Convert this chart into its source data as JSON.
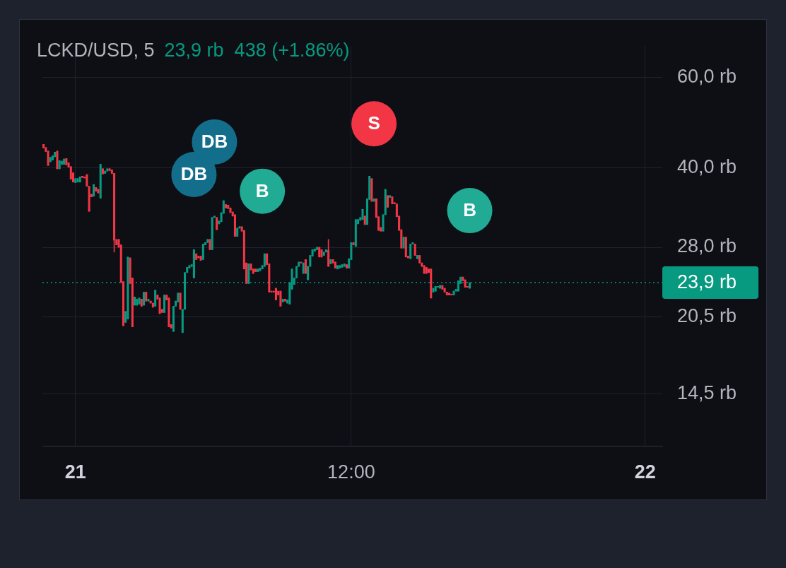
{
  "chart_data": {
    "type": "candlestick",
    "title": "LCKD/USD, 5",
    "subtitle": "23,9 rb  438 (+1.86%)",
    "categories": [
      null,
      null,
      null,
      null,
      null,
      null,
      null,
      null,
      null,
      null,
      null,
      null,
      null,
      null,
      "21",
      null,
      null,
      null,
      null,
      null,
      null,
      null,
      null,
      null,
      null,
      null,
      null,
      null,
      null,
      null,
      null,
      null,
      null,
      null,
      null,
      null,
      null,
      null,
      null,
      null,
      null,
      null,
      null,
      null,
      null,
      null,
      null,
      null,
      null,
      null,
      null,
      null,
      null,
      null,
      null,
      null,
      null,
      null,
      null,
      null,
      null,
      null,
      null,
      null,
      null,
      null,
      null,
      null,
      null,
      null,
      null,
      null,
      null,
      null,
      null,
      null,
      null,
      null,
      null,
      null,
      null,
      null,
      null,
      null,
      null,
      null,
      null,
      null,
      null,
      null,
      null,
      null,
      null,
      null,
      null,
      null,
      null,
      null,
      null,
      null,
      null,
      null,
      null,
      null,
      null,
      null,
      null,
      null,
      null,
      null,
      null,
      null,
      null,
      null,
      null,
      null,
      null,
      null,
      null,
      null,
      null,
      null,
      null,
      null,
      null,
      null,
      null,
      null,
      null,
      null,
      null,
      null,
      null,
      null,
      null,
      "12:00",
      null,
      null,
      null,
      null,
      null,
      null,
      null,
      null,
      null,
      null,
      null,
      null,
      null,
      null,
      null,
      null,
      null,
      null,
      null,
      null,
      null,
      null,
      null,
      null,
      null,
      null,
      null,
      null,
      null,
      null,
      null,
      null,
      null,
      null,
      null,
      null,
      null,
      null,
      null,
      null,
      null,
      null,
      null,
      null,
      null,
      null,
      null,
      null,
      null,
      null,
      null,
      null,
      null,
      null,
      null,
      null,
      null,
      null,
      null,
      null,
      null,
      null,
      null,
      null,
      null,
      null,
      null,
      null,
      null,
      null,
      null,
      null,
      null,
      null,
      null,
      null,
      null,
      null,
      null,
      null,
      null,
      null,
      null,
      null,
      null,
      null,
      null,
      null,
      null,
      null,
      null,
      null,
      null,
      null,
      null,
      null,
      null,
      null,
      null,
      null,
      null,
      null,
      null,
      null,
      null,
      null,
      null,
      null,
      null,
      null,
      null,
      null,
      null,
      null,
      null,
      null,
      null,
      null,
      null,
      null,
      null,
      null,
      null,
      null,
      null,
      null,
      null,
      null,
      "22",
      null,
      null,
      null,
      null,
      null,
      null,
      null
    ],
    "ylim": [
      11.5,
      69
    ],
    "yticks": [
      {
        "value": 60,
        "label": "60,0 rb"
      },
      {
        "value": 40,
        "label": "40,0 rb"
      },
      {
        "value": 28,
        "label": "28,0 rb"
      },
      {
        "value": 20.5,
        "label": "20,5 rb"
      },
      {
        "value": 14.5,
        "label": "14,5 rb"
      }
    ],
    "log": "y",
    "grid": true,
    "marker": "circle",
    "ref_lines": [
      {
        "axis": "y",
        "value": 23.9,
        "label": "23,9 rb",
        "color": "#089981",
        "line_style": "dotted"
      }
    ],
    "series": [
      {
        "ohlc": [
          [
            44.4,
            44.4,
            43.7,
            43.7
          ],
          [
            43.8,
            43.8,
            43.0,
            43.0
          ],
          [
            43.1,
            43.1,
            40.4,
            40.4
          ],
          [
            41.1,
            41.9,
            41.1,
            41.9
          ],
          [
            41.4,
            42.2,
            41.4,
            42.2
          ],
          [
            42.0,
            42.9,
            42.0,
            42.9
          ],
          [
            43.1,
            43.1,
            39.8,
            39.8
          ],
          [
            39.8,
            41.3,
            39.8,
            41.3
          ],
          [
            40.6,
            41.2,
            40.6,
            41.2
          ],
          [
            40.6,
            41.6,
            40.6,
            41.6
          ],
          [
            41.7,
            41.7,
            40.5,
            40.5
          ],
          [
            40.9,
            40.9,
            40.1,
            40.1
          ],
          [
            40.2,
            40.2,
            38.0,
            38.0
          ],
          [
            39.1,
            39.1,
            37.5,
            37.5
          ],
          [
            37.4,
            38.1,
            37.4,
            38.1
          ],
          [
            37.5,
            38.1,
            37.5,
            38.1
          ],
          [
            37.5,
            38.4,
            37.5,
            38.4
          ],
          [
            38.5,
            38.5,
            38.3,
            38.3
          ],
          [
            38.4,
            38.4,
            38.2,
            38.2
          ],
          [
            38.8,
            38.8,
            36.8,
            36.8
          ],
          [
            36.8,
            36.8,
            32.9,
            32.9
          ],
          [
            35.5,
            35.5,
            35.1,
            35.1
          ],
          [
            35.2,
            37.1,
            35.2,
            37.1
          ],
          [
            36.6,
            36.6,
            36.0,
            36.0
          ],
          [
            36.3,
            36.3,
            35.7,
            35.7
          ],
          [
            34.9,
            40.6,
            34.9,
            40.6
          ],
          [
            39.8,
            39.8,
            38.9,
            38.9
          ],
          [
            39.0,
            39.4,
            39.0,
            39.4
          ],
          [
            39.4,
            39.8,
            39.4,
            39.8
          ],
          [
            39.8,
            39.8,
            39.5,
            39.5
          ],
          [
            39.6,
            39.6,
            39.0,
            39.0
          ],
          [
            39.0,
            39.0,
            27.4,
            28.9
          ],
          [
            29.0,
            29.0,
            28.3,
            28.3
          ],
          [
            29.0,
            29.0,
            28.0,
            28.0
          ],
          [
            28.3,
            28.3,
            23.9,
            23.9
          ],
          [
            24.0,
            24.0,
            19.7,
            19.7
          ],
          [
            20.0,
            21.0,
            20.0,
            21.0
          ],
          [
            20.3,
            26.8,
            20.3,
            26.8
          ],
          [
            26.7,
            26.7,
            23.8,
            23.8
          ],
          [
            24.4,
            24.4,
            19.6,
            19.6
          ],
          [
            21.6,
            22.4,
            21.6,
            22.4
          ],
          [
            21.6,
            22.2,
            21.6,
            22.2
          ],
          [
            21.7,
            22.3,
            21.7,
            22.3
          ],
          [
            22.2,
            22.2,
            21.5,
            21.5
          ],
          [
            21.6,
            22.9,
            21.6,
            22.9
          ],
          [
            22.9,
            22.9,
            22.0,
            22.0
          ],
          [
            22.0,
            22.2,
            22.0,
            22.2
          ],
          [
            22.0,
            22.0,
            21.8,
            21.8
          ],
          [
            21.8,
            21.8,
            21.4,
            21.4
          ],
          [
            21.5,
            23.1,
            21.5,
            23.1
          ],
          [
            22.6,
            22.6,
            22.2,
            22.2
          ],
          [
            22.3,
            22.3,
            20.8,
            20.8
          ],
          [
            21.2,
            21.2,
            20.9,
            20.9
          ],
          [
            20.9,
            22.6,
            20.9,
            22.6
          ],
          [
            22.6,
            22.6,
            22.1,
            22.1
          ],
          [
            22.3,
            22.3,
            19.6,
            19.6
          ],
          [
            19.8,
            19.8,
            19.5,
            19.5
          ],
          [
            19.2,
            21.5,
            19.2,
            21.5
          ],
          [
            21.5,
            22.0,
            21.5,
            22.0
          ],
          [
            21.9,
            22.8,
            21.9,
            22.8
          ],
          [
            22.8,
            22.8,
            21.2,
            21.2
          ],
          [
            19.1,
            21.2,
            19.1,
            21.2
          ],
          [
            21.2,
            25.0,
            21.2,
            25.0
          ],
          [
            25.0,
            25.6,
            25.0,
            25.6
          ],
          [
            25.5,
            25.8,
            25.5,
            25.8
          ],
          [
            25.7,
            25.9,
            25.7,
            25.9
          ],
          [
            24.4,
            27.7,
            24.4,
            27.7
          ],
          [
            27.2,
            27.2,
            26.5,
            26.5
          ],
          [
            26.9,
            26.9,
            26.7,
            26.7
          ],
          [
            26.9,
            26.9,
            26.4,
            26.4
          ],
          [
            26.5,
            28.4,
            26.5,
            28.4
          ],
          [
            28.3,
            28.6,
            28.3,
            28.6
          ],
          [
            28.6,
            29.0,
            28.6,
            29.0
          ],
          [
            29.0,
            29.0,
            27.7,
            27.7
          ],
          [
            27.7,
            32.0,
            27.7,
            32.0
          ],
          [
            32.0,
            32.2,
            32.0,
            32.2
          ],
          [
            32.0,
            32.0,
            30.3,
            30.3
          ],
          [
            31.1,
            31.5,
            31.1,
            31.5
          ],
          [
            31.4,
            32.7,
            31.4,
            32.7
          ],
          [
            32.6,
            34.5,
            32.6,
            34.5
          ],
          [
            33.9,
            33.9,
            33.4,
            33.4
          ],
          [
            33.8,
            33.8,
            33.3,
            33.3
          ],
          [
            33.4,
            33.4,
            32.7,
            32.7
          ],
          [
            32.8,
            32.8,
            32.2,
            32.2
          ],
          [
            32.4,
            32.4,
            29.4,
            29.4
          ],
          [
            29.4,
            30.5,
            29.4,
            30.5
          ],
          [
            30.5,
            30.7,
            30.5,
            30.7
          ],
          [
            30.7,
            30.7,
            30.1,
            30.1
          ],
          [
            30.2,
            30.2,
            25.4,
            25.4
          ],
          [
            26.1,
            26.1,
            23.8,
            23.8
          ],
          [
            23.8,
            26.0,
            23.8,
            26.0
          ],
          [
            26.0,
            26.0,
            25.3,
            25.3
          ],
          [
            25.4,
            25.4,
            24.9,
            24.9
          ],
          [
            25.4,
            25.4,
            25.1,
            25.1
          ],
          [
            25.1,
            25.4,
            25.1,
            25.4
          ],
          [
            25.2,
            25.5,
            25.2,
            25.5
          ],
          [
            25.4,
            25.8,
            25.4,
            25.8
          ],
          [
            25.7,
            27.2,
            25.7,
            27.2
          ],
          [
            27.2,
            27.2,
            25.9,
            25.9
          ],
          [
            26.0,
            26.0,
            22.9,
            22.9
          ],
          [
            23.0,
            23.0,
            22.9,
            22.9
          ],
          [
            23.0,
            23.0,
            22.9,
            22.9
          ],
          [
            23.3,
            23.3,
            22.1,
            22.1
          ],
          [
            23.0,
            23.0,
            22.6,
            22.6
          ],
          [
            23.0,
            23.0,
            21.5,
            21.5
          ],
          [
            21.9,
            22.2,
            21.9,
            22.2
          ],
          [
            22.2,
            22.2,
            22.0,
            22.0
          ],
          [
            21.8,
            22.1,
            21.8,
            22.1
          ],
          [
            21.7,
            23.9,
            21.7,
            23.9
          ],
          [
            23.2,
            25.4,
            23.2,
            25.4
          ],
          [
            23.7,
            24.4,
            23.7,
            24.4
          ],
          [
            24.4,
            25.7,
            24.4,
            25.7
          ],
          [
            25.7,
            26.2,
            25.7,
            26.2
          ],
          [
            26.2,
            26.2,
            26.1,
            26.1
          ],
          [
            24.9,
            26.1,
            24.9,
            26.1
          ],
          [
            26.5,
            26.5,
            24.9,
            24.9
          ],
          [
            24.2,
            25.7,
            24.2,
            25.7
          ],
          [
            25.7,
            27.0,
            25.7,
            27.0
          ],
          [
            26.9,
            27.7,
            26.9,
            27.7
          ],
          [
            27.5,
            27.8,
            27.5,
            27.8
          ],
          [
            27.7,
            28.0,
            27.7,
            28.0
          ],
          [
            28.0,
            28.0,
            26.8,
            26.8
          ],
          [
            27.7,
            27.7,
            26.8,
            26.8
          ],
          [
            27.0,
            27.4,
            27.0,
            27.4
          ],
          [
            27.4,
            27.7,
            27.4,
            27.7
          ],
          [
            27.6,
            29.0,
            25.7,
            25.7
          ],
          [
            26.0,
            26.5,
            26.0,
            26.5
          ],
          [
            26.5,
            26.5,
            26.1,
            26.1
          ],
          [
            26.2,
            26.2,
            25.5,
            25.5
          ],
          [
            25.4,
            25.8,
            25.4,
            25.8
          ],
          [
            25.5,
            25.8,
            25.5,
            25.8
          ],
          [
            25.6,
            25.9,
            25.6,
            25.9
          ],
          [
            25.7,
            26.0,
            25.7,
            26.0
          ],
          [
            25.9,
            25.9,
            25.5,
            25.5
          ],
          [
            25.5,
            26.6,
            25.5,
            26.6
          ],
          [
            26.5,
            28.6,
            26.5,
            28.6
          ],
          [
            28.6,
            28.6,
            28.3,
            28.3
          ],
          [
            28.1,
            31.7,
            28.1,
            31.7
          ],
          [
            31.1,
            31.7,
            31.1,
            31.7
          ],
          [
            31.6,
            32.0,
            31.6,
            32.0
          ],
          [
            31.7,
            33.2,
            31.7,
            33.2
          ],
          [
            32.2,
            32.2,
            31.0,
            31.0
          ],
          [
            31.0,
            34.8,
            31.0,
            34.8
          ],
          [
            34.7,
            38.5,
            34.7,
            38.5
          ],
          [
            38.1,
            38.1,
            34.4,
            34.4
          ],
          [
            34.4,
            34.8,
            34.4,
            34.8
          ],
          [
            34.8,
            34.8,
            32.0,
            32.0
          ],
          [
            32.1,
            32.1,
            30.2,
            30.2
          ],
          [
            30.6,
            30.6,
            30.1,
            30.1
          ],
          [
            30.1,
            32.4,
            30.1,
            32.4
          ],
          [
            32.4,
            36.3,
            32.4,
            36.3
          ],
          [
            35.3,
            35.3,
            33.5,
            33.5
          ],
          [
            35.0,
            35.3,
            35.0,
            35.3
          ],
          [
            35.1,
            35.1,
            34.0,
            34.0
          ],
          [
            34.2,
            34.2,
            34.0,
            34.0
          ],
          [
            34.0,
            34.0,
            32.1,
            32.1
          ],
          [
            32.2,
            32.2,
            30.2,
            30.2
          ],
          [
            30.3,
            30.3,
            27.9,
            27.9
          ],
          [
            27.9,
            29.3,
            27.9,
            29.3
          ],
          [
            29.3,
            29.3,
            26.8,
            26.8
          ],
          [
            26.9,
            26.9,
            26.7,
            26.7
          ],
          [
            26.6,
            28.4,
            26.6,
            28.4
          ],
          [
            28.4,
            28.6,
            28.4,
            28.6
          ],
          [
            28.4,
            28.4,
            27.0,
            27.0
          ],
          [
            26.6,
            27.0,
            26.6,
            27.0
          ],
          [
            27.0,
            27.0,
            26.1,
            26.1
          ],
          [
            26.1,
            26.1,
            25.7,
            25.7
          ],
          [
            25.8,
            25.8,
            24.9,
            24.9
          ],
          [
            25.6,
            25.6,
            24.9,
            24.9
          ],
          [
            25.4,
            25.4,
            25.0,
            25.0
          ],
          [
            25.4,
            25.4,
            22.3,
            22.3
          ],
          [
            22.9,
            23.3,
            22.9,
            23.3
          ],
          [
            23.0,
            23.5,
            23.0,
            23.5
          ],
          [
            23.4,
            23.5,
            23.4,
            23.5
          ],
          [
            23.3,
            23.6,
            23.3,
            23.6
          ],
          [
            23.6,
            23.6,
            23.2,
            23.2
          ],
          [
            23.3,
            23.3,
            22.9,
            22.9
          ],
          [
            22.9,
            22.9,
            22.6,
            22.6
          ],
          [
            22.8,
            22.8,
            22.6,
            22.6
          ],
          [
            22.7,
            22.7,
            22.6,
            22.6
          ],
          [
            22.6,
            23.0,
            22.6,
            23.0
          ],
          [
            23.0,
            23.2,
            23.0,
            23.2
          ],
          [
            23.0,
            24.1,
            23.0,
            24.1
          ],
          [
            23.8,
            24.5,
            23.8,
            24.5
          ],
          [
            24.5,
            24.5,
            24.1,
            24.1
          ],
          [
            24.2,
            24.2,
            23.4,
            23.4
          ],
          [
            23.5,
            23.5,
            23.4,
            23.4
          ],
          [
            23.3,
            23.9,
            23.3,
            23.9
          ],
          null,
          null,
          null,
          null,
          null,
          null,
          null,
          null,
          null,
          null,
          null,
          null,
          null,
          null,
          null,
          null,
          null,
          null,
          null,
          null,
          null,
          null,
          null,
          null,
          null,
          null,
          null,
          null,
          null,
          null,
          null,
          null,
          null,
          null,
          null,
          null,
          null,
          null,
          null,
          null,
          null,
          null,
          null,
          null,
          null,
          null,
          null,
          null,
          null,
          null,
          null,
          null,
          null,
          null,
          null,
          null,
          null,
          null,
          null,
          null,
          null,
          null,
          null,
          null,
          null,
          null,
          null,
          null,
          null,
          null,
          null,
          null,
          null,
          null,
          null,
          null,
          null,
          null,
          null,
          null,
          null,
          null,
          null,
          null
        ]
      },
      {
        "type": "scatter",
        "name": "DB",
        "color": "#136e8c",
        "values": [
          null,
          null,
          null,
          null,
          null,
          null,
          null,
          null,
          null,
          null,
          null,
          null,
          null,
          null,
          null,
          null,
          null,
          null,
          null,
          null,
          null,
          null,
          null,
          null,
          null,
          null,
          null,
          null,
          null,
          null,
          null,
          null,
          null,
          null,
          null,
          null,
          null,
          null,
          null,
          null,
          null,
          null,
          null,
          null,
          null,
          null,
          null,
          null,
          null,
          null,
          null,
          null,
          null,
          null,
          null,
          null,
          null,
          null,
          null,
          null,
          null,
          null,
          null,
          null,
          null,
          null,
          38.8,
          null,
          null,
          null,
          null,
          null,
          null,
          null,
          null,
          44.9,
          null,
          null,
          null,
          null,
          null,
          null,
          null,
          null,
          null,
          null,
          null,
          null,
          null,
          null,
          null,
          null,
          null,
          null,
          null,
          null,
          null,
          null,
          null,
          null,
          null,
          null,
          null,
          null,
          null,
          null,
          null,
          null,
          null,
          null,
          null,
          null,
          null,
          null,
          null,
          null,
          null,
          null,
          null,
          null,
          null,
          null,
          null,
          null,
          null,
          null,
          null,
          null,
          null,
          null,
          null,
          null,
          null,
          null,
          null,
          null,
          null,
          null,
          null,
          null,
          null,
          null,
          null,
          null,
          null,
          null,
          null,
          null,
          null,
          null,
          null,
          null,
          null,
          null,
          null,
          null,
          null,
          null,
          null,
          null,
          null,
          null,
          null,
          null,
          null,
          null,
          null,
          null,
          null,
          null,
          null,
          null,
          null,
          null,
          null,
          null,
          null,
          null,
          null,
          null,
          null,
          null,
          null,
          null,
          null,
          null,
          null,
          null,
          null,
          null,
          null,
          null,
          null,
          null,
          null,
          null,
          null,
          null,
          null,
          null,
          null,
          null,
          null,
          null,
          null,
          null,
          null,
          null,
          null,
          null,
          null,
          null,
          null,
          null,
          null,
          null,
          null,
          null,
          null,
          null,
          null,
          null,
          null,
          null,
          null,
          null,
          null,
          null,
          null,
          null,
          null,
          null,
          null,
          null,
          null,
          null,
          null,
          null,
          null,
          null,
          null,
          null,
          null,
          null,
          null,
          null,
          null,
          null,
          null,
          null,
          null,
          null,
          null,
          null,
          null,
          null,
          null,
          null,
          null,
          null,
          null,
          null,
          null,
          null,
          null,
          null,
          null,
          null,
          null,
          null,
          null,
          null
        ]
      },
      {
        "type": "scatter",
        "name": "B",
        "color": "#22ab94",
        "values": [
          null,
          null,
          null,
          null,
          null,
          null,
          null,
          null,
          null,
          null,
          null,
          null,
          null,
          null,
          null,
          null,
          null,
          null,
          null,
          null,
          null,
          null,
          null,
          null,
          null,
          null,
          null,
          null,
          null,
          null,
          null,
          null,
          null,
          null,
          null,
          null,
          null,
          null,
          null,
          null,
          null,
          null,
          null,
          null,
          null,
          null,
          null,
          null,
          null,
          null,
          null,
          null,
          null,
          null,
          null,
          null,
          null,
          null,
          null,
          null,
          null,
          null,
          null,
          null,
          null,
          null,
          null,
          null,
          null,
          null,
          null,
          null,
          null,
          null,
          null,
          null,
          null,
          null,
          null,
          null,
          null,
          null,
          null,
          null,
          null,
          null,
          null,
          null,
          null,
          null,
          null,
          null,
          null,
          null,
          null,
          null,
          36.0,
          null,
          null,
          null,
          null,
          null,
          null,
          null,
          null,
          null,
          null,
          null,
          null,
          null,
          null,
          null,
          null,
          null,
          null,
          null,
          null,
          null,
          null,
          null,
          null,
          null,
          null,
          null,
          null,
          null,
          null,
          null,
          null,
          null,
          null,
          null,
          null,
          null,
          null,
          null,
          null,
          null,
          null,
          null,
          null,
          null,
          null,
          null,
          null,
          null,
          null,
          null,
          null,
          null,
          null,
          null,
          null,
          null,
          null,
          null,
          null,
          null,
          null,
          null,
          null,
          null,
          null,
          null,
          null,
          null,
          null,
          null,
          null,
          null,
          null,
          null,
          null,
          null,
          null,
          null,
          null,
          null,
          null,
          null,
          null,
          null,
          null,
          null,
          null,
          null,
          null,
          33.0,
          null,
          null,
          null,
          null,
          null,
          null,
          null,
          null,
          null,
          null,
          null,
          null,
          null,
          null,
          null,
          null,
          null,
          null,
          null,
          null,
          null,
          null,
          null,
          null,
          null,
          null,
          null,
          null,
          null,
          null,
          null,
          null,
          null,
          null,
          null,
          null,
          null,
          null,
          null,
          null,
          null,
          null,
          null,
          null,
          null,
          null,
          null,
          null,
          null,
          null,
          null,
          null,
          null,
          null,
          null,
          null,
          null,
          null,
          null,
          null,
          null,
          null,
          null,
          null,
          null,
          null,
          null,
          null,
          null,
          null,
          null,
          null,
          null,
          null,
          null,
          null,
          null,
          null,
          null,
          null,
          null,
          null,
          null,
          null
        ]
      },
      {
        "type": "scatter",
        "name": "S",
        "color": "#f23645",
        "values": [
          null,
          null,
          null,
          null,
          null,
          null,
          null,
          null,
          null,
          null,
          null,
          null,
          null,
          null,
          null,
          null,
          null,
          null,
          null,
          null,
          null,
          null,
          null,
          null,
          null,
          null,
          null,
          null,
          null,
          null,
          null,
          null,
          null,
          null,
          null,
          null,
          null,
          null,
          null,
          null,
          null,
          null,
          null,
          null,
          null,
          null,
          null,
          null,
          null,
          null,
          null,
          null,
          null,
          null,
          null,
          null,
          null,
          null,
          null,
          null,
          null,
          null,
          null,
          null,
          null,
          null,
          null,
          null,
          null,
          null,
          null,
          null,
          null,
          null,
          null,
          null,
          null,
          null,
          null,
          null,
          null,
          null,
          null,
          null,
          null,
          null,
          null,
          null,
          null,
          null,
          null,
          null,
          null,
          null,
          null,
          null,
          null,
          null,
          null,
          null,
          null,
          null,
          null,
          null,
          null,
          null,
          null,
          null,
          null,
          null,
          null,
          null,
          null,
          null,
          null,
          null,
          null,
          null,
          null,
          null,
          null,
          null,
          null,
          null,
          null,
          null,
          null,
          null,
          null,
          null,
          null,
          null,
          null,
          null,
          null,
          null,
          null,
          null,
          null,
          null,
          null,
          null,
          null,
          null,
          null,
          48.7,
          null,
          null,
          null,
          null,
          null,
          null,
          null,
          null,
          null,
          null,
          null,
          null,
          null,
          null,
          null,
          null,
          null,
          null,
          null,
          null,
          null,
          null,
          null,
          null,
          null,
          null,
          null,
          null,
          null,
          null,
          null,
          null,
          null,
          null,
          null,
          null,
          null,
          null,
          null,
          null,
          null,
          null,
          null,
          null,
          null,
          null,
          null,
          null,
          null,
          null,
          null,
          null,
          null,
          null,
          null,
          null,
          null,
          null,
          null,
          null,
          null,
          null,
          null,
          null,
          null,
          null,
          null,
          null,
          null,
          null,
          null,
          null,
          null,
          null,
          null,
          null,
          null,
          null,
          null,
          null,
          null,
          null,
          null,
          null,
          null,
          null,
          null,
          null,
          null,
          null,
          null,
          null,
          null,
          null,
          null,
          null,
          null,
          null,
          null,
          null,
          null,
          null,
          null,
          null,
          null,
          null,
          null,
          null,
          null,
          null,
          null,
          null,
          null,
          null,
          null,
          null,
          null,
          null,
          null,
          null,
          null,
          null,
          null,
          null,
          null,
          null
        ]
      }
    ]
  }
}
